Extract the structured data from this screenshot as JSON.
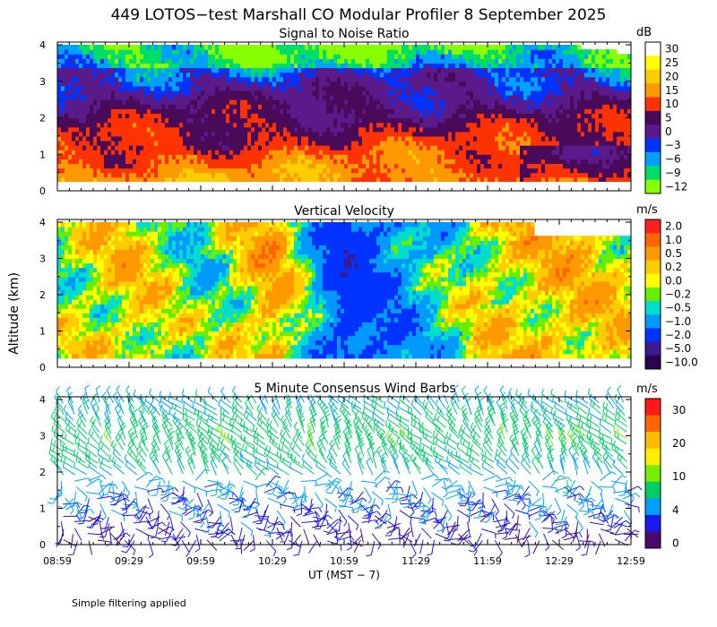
{
  "title": "449 LOTOS−test Marshall CO Modular Profiler  8 September 2025",
  "ylabel": "Altitude (km)",
  "xlabel": "UT  (MST − 7)",
  "footnote": "Simple filtering applied",
  "x_ticks": [
    "08:59",
    "09:29",
    "09:59",
    "10:29",
    "10:59",
    "11:29",
    "11:59",
    "12:29",
    "12:59"
  ],
  "y_ticks": [
    "0",
    "1",
    "2",
    "3",
    "4"
  ],
  "chart_data": [
    {
      "type": "heatmap",
      "title": "Signal to Noise Ratio",
      "xlabel": "UT  (MST − 7)",
      "ylabel": "Altitude (km)",
      "x_range": [
        "08:59",
        "12:59"
      ],
      "ylim": [
        0,
        4.1
      ],
      "data_altitude_range": [
        0.25,
        4.0
      ],
      "colorbar": {
        "unit": "dB",
        "labels": [
          "30",
          "25",
          "20",
          "15",
          "10",
          "5",
          "0",
          "−3",
          "−6",
          "−9",
          "−12"
        ],
        "colors": [
          "#ffffff",
          "#ffff00",
          "#ffcc00",
          "#ff9900",
          "#ff3300",
          "#4a0a5a",
          "#5a1a8a",
          "#0033ff",
          "#00a0ff",
          "#00dd66",
          "#88ff00"
        ]
      },
      "profile": {
        "altitude_km": [
          0.3,
          0.8,
          1.3,
          1.8,
          2.3,
          2.8,
          3.3,
          3.8
        ],
        "typical_snr_db": [
          14,
          10,
          5,
          3,
          2,
          -2,
          -6,
          -8
        ]
      }
    },
    {
      "type": "heatmap",
      "title": "Vertical Velocity",
      "xlabel": "UT  (MST − 7)",
      "ylabel": "Altitude (km)",
      "x_range": [
        "08:59",
        "12:59"
      ],
      "ylim": [
        0,
        4.1
      ],
      "data_altitude_range": [
        0.25,
        4.0
      ],
      "colorbar": {
        "unit": "m/s",
        "labels": [
          "2.0",
          "1.0",
          "0.5",
          "0.2",
          "0.0",
          "−0.2",
          "−0.5",
          "−1.0",
          "−2.0",
          "−5.0",
          "−10.0"
        ],
        "colors": [
          "#ff2020",
          "#ff6600",
          "#ff9900",
          "#ffcc00",
          "#ffff00",
          "#66ee00",
          "#00ddcc",
          "#0099ff",
          "#0033ff",
          "#3a1a90",
          "#2a0050"
        ]
      },
      "time_series": {
        "time": [
          "08:59",
          "09:29",
          "09:59",
          "10:29",
          "10:59",
          "11:29",
          "11:59",
          "12:29",
          "12:59"
        ],
        "typical_w_ms": [
          0.0,
          0.3,
          -0.3,
          0.6,
          -1.5,
          -0.6,
          0.2,
          0.4,
          0.2
        ]
      }
    },
    {
      "type": "wind_barbs",
      "title": "5 Minute Consensus Wind Barbs",
      "xlabel": "UT  (MST − 7)",
      "ylabel": "Altitude (km)",
      "x_range": [
        "08:59",
        "12:59"
      ],
      "ylim": [
        0,
        4.1
      ],
      "colorbar": {
        "unit": "m/s",
        "labels": [
          "30",
          "20",
          "10",
          "4",
          "0"
        ],
        "bands": [
          {
            "min": 30,
            "color": "#ff1a1a"
          },
          {
            "min": 25,
            "color": "#ff6600"
          },
          {
            "min": 20,
            "color": "#ffbb00"
          },
          {
            "min": 15,
            "color": "#ffee00"
          },
          {
            "min": 10,
            "color": "#77ee00"
          },
          {
            "min": 7,
            "color": "#00cc66"
          },
          {
            "min": 4,
            "color": "#00a0ff"
          },
          {
            "min": 2,
            "color": "#1a1aee"
          },
          {
            "min": 0,
            "color": "#4a0a6a"
          }
        ]
      },
      "profile": {
        "altitude_km": [
          0.3,
          0.8,
          1.3,
          1.8,
          2.3,
          2.8,
          3.3,
          3.8
        ],
        "typical_speed_ms": [
          2,
          3,
          4,
          6,
          8,
          9,
          8,
          6
        ]
      }
    }
  ]
}
